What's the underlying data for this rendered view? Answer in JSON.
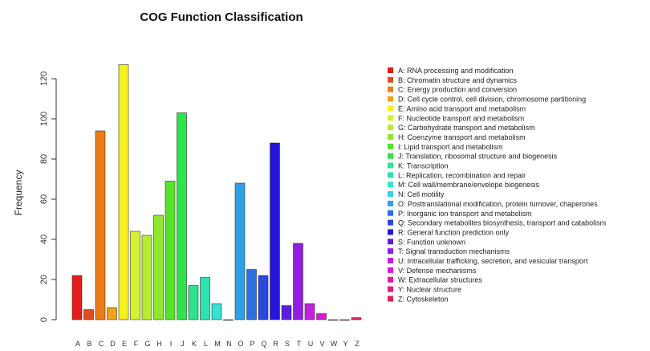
{
  "chart_data": {
    "type": "bar",
    "title": "COG Function Classification",
    "xlabel": "",
    "ylabel": "Frequency",
    "ylim": [
      0,
      128
    ],
    "yticks": [
      0,
      20,
      40,
      60,
      80,
      100,
      120
    ],
    "grid": false,
    "legend_position": "right",
    "categories": [
      "A",
      "B",
      "C",
      "D",
      "E",
      "F",
      "G",
      "H",
      "I",
      "J",
      "K",
      "L",
      "M",
      "N",
      "O",
      "P",
      "Q",
      "R",
      "S",
      "T",
      "U",
      "V",
      "W",
      "Y",
      "Z"
    ],
    "values": [
      22,
      5,
      94,
      6,
      127,
      44,
      42,
      52,
      69,
      103,
      17,
      21,
      8,
      0,
      68,
      25,
      22,
      88,
      7,
      38,
      8,
      3,
      0,
      0,
      1
    ],
    "colors": [
      "#e31b1b",
      "#e34a1f",
      "#ef7d17",
      "#f3a21a",
      "#f7f21b",
      "#d6f130",
      "#b6ec33",
      "#8ee82e",
      "#54e329",
      "#2de44a",
      "#2fe38f",
      "#2fe2b1",
      "#36e2d1",
      "#36d2e8",
      "#2ea0e6",
      "#2b6fe2",
      "#2a48de",
      "#2414dc",
      "#5a1de0",
      "#921fe0",
      "#c51fe0",
      "#d81ad8",
      "#e01aa6",
      "#e01a7a",
      "#e0205a"
    ],
    "legend": [
      "A: RNA processing and modification",
      "B: Chromatin structure and dynamics",
      "C: Energy production and conversion",
      "D: Cell cycle control, cell division, chromosome partitioning",
      "E: Amino acid transport and metabolism",
      "F: Nucleotide transport and metabolism",
      "G: Carbohydrate transport and metabolism",
      "H: Coenzyme transport and metabolism",
      "I: Lipid transport and metabolism",
      "J: Translation, ribosomal structure and biogenesis",
      "K: Transcription",
      "L: Replication, recombination and repair",
      "M: Cell wall/membrane/envelope biogenesis",
      "N: Cell motility",
      "O: Posttranslational modification, protein turnover, chaperones",
      "P: Inorganic ion transport and metabolism",
      "Q: Secondary metabolites biosynthesis, transport and catabolism",
      "R: General function prediction only",
      "S: Function unknown",
      "T: Signal transduction mechanisms",
      "U: Intracellular trafficking, secretion, and vesicular transport",
      "V: Defense mechanisms",
      "W: Extracellular structures",
      "Y: Nuclear structure",
      "Z: Cytoskeleton"
    ]
  }
}
